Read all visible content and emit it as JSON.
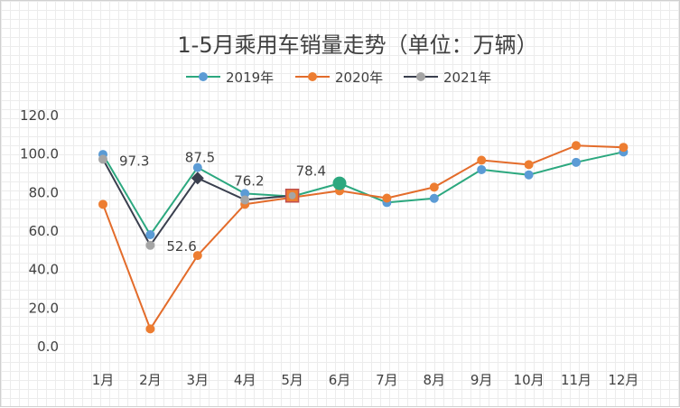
{
  "chart_data": {
    "type": "line",
    "title": "1-5月乘用车销量走势（单位：万辆）",
    "xlabel": "",
    "ylabel": "",
    "categories": [
      "1月",
      "2月",
      "3月",
      "4月",
      "5月",
      "6月",
      "7月",
      "8月",
      "9月",
      "10月",
      "11月",
      "12月"
    ],
    "ylim": [
      0,
      120
    ],
    "yticks": [
      "0.0",
      "20.0",
      "40.0",
      "60.0",
      "80.0",
      "100.0",
      "120.0"
    ],
    "grid": true,
    "legend_position": "top",
    "series": [
      {
        "name": "2019年",
        "color": "#2ca87f",
        "marker_color": "#5b9bd5",
        "values": [
          99.8,
          58.1,
          93.0,
          79.5,
          78.0,
          84.8,
          74.8,
          77.0,
          91.9,
          89.2,
          95.7,
          101.1
        ]
      },
      {
        "name": "2020年",
        "color": "#e36c2b",
        "marker_color": "#ed7d31",
        "values": [
          73.9,
          9.2,
          47.3,
          73.9,
          77.5,
          80.9,
          77.1,
          82.8,
          96.8,
          94.5,
          104.4,
          103.5
        ]
      },
      {
        "name": "2021年",
        "color": "#3a3f4e",
        "marker_color": "#a5a5a5",
        "values": [
          97.3,
          52.6,
          87.5,
          76.2,
          78.4,
          null,
          null,
          null,
          null,
          null,
          null,
          null
        ],
        "data_labels": [
          "97.3",
          "52.6",
          "87.5",
          "76.2",
          "78.4",
          null,
          null,
          null,
          null,
          null,
          null,
          null
        ]
      }
    ]
  }
}
